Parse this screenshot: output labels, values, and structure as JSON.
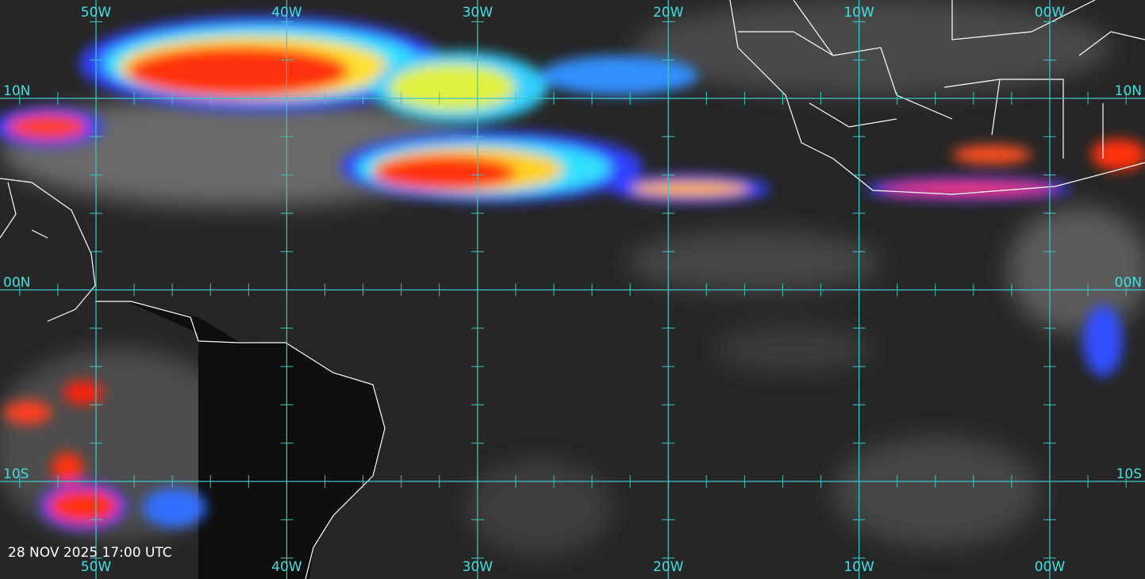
{
  "map": {
    "longitudes": [
      "50W",
      "40W",
      "30W",
      "20W",
      "10W",
      "00W"
    ],
    "latitudes": [
      "10N",
      "00N",
      "10S"
    ],
    "timestamp": "28 NOV 2025 17:00 UTC"
  }
}
